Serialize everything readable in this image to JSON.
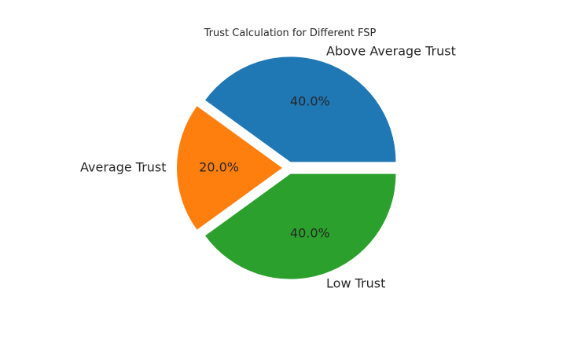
{
  "chart_data": {
    "type": "pie",
    "title": "Trust Calculation for Different FSP",
    "slices": [
      {
        "label": "Above Average Trust",
        "value": 40.0,
        "pct_label": "40.0%",
        "color": "#1f77b4",
        "exploded": true
      },
      {
        "label": "Average Trust",
        "value": 20.0,
        "pct_label": "20.0%",
        "color": "#ff7f0e",
        "exploded": true
      },
      {
        "label": "Low Trust",
        "value": 40.0,
        "pct_label": "40.0%",
        "color": "#2ca02c",
        "exploded": true
      }
    ],
    "start_angle_deg": 0,
    "direction": "counterclockwise",
    "legend": "none"
  }
}
